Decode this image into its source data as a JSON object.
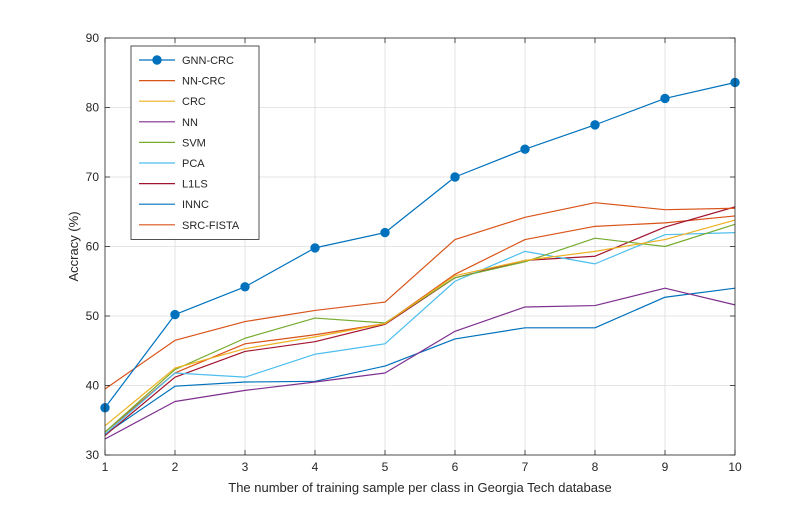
{
  "chart_data": {
    "type": "line",
    "title": "",
    "xlabel": "The number of training sample per class in Georgia Tech database",
    "ylabel": "Accracy (%)",
    "x": [
      1,
      2,
      3,
      4,
      5,
      6,
      7,
      8,
      9,
      10
    ],
    "xlim": [
      1,
      10
    ],
    "ylim": [
      30,
      90
    ],
    "x_ticks": [
      "1",
      "2",
      "3",
      "4",
      "5",
      "6",
      "7",
      "8",
      "9",
      "10"
    ],
    "y_ticks": [
      "30",
      "40",
      "50",
      "60",
      "70",
      "80",
      "90"
    ],
    "grid": true,
    "legend_position": "top-left",
    "series": [
      {
        "name": "GNN-CRC",
        "color": "#0072BD",
        "marker": "circle",
        "values": [
          36.8,
          50.2,
          54.2,
          59.8,
          62.0,
          70.0,
          74.0,
          77.5,
          81.3,
          83.6
        ]
      },
      {
        "name": "NN-CRC",
        "color": "#D95319",
        "marker": "none",
        "values": [
          39.5,
          46.5,
          49.2,
          50.8,
          52.0,
          61.0,
          64.2,
          66.3,
          65.3,
          65.5
        ]
      },
      {
        "name": "CRC",
        "color": "#EDB120",
        "marker": "none",
        "values": [
          34.2,
          42.5,
          45.3,
          47.0,
          48.9,
          55.8,
          58.0,
          59.3,
          61.0,
          63.8
        ]
      },
      {
        "name": "NN",
        "color": "#7E2F8E",
        "marker": "none",
        "values": [
          32.3,
          37.7,
          39.3,
          40.5,
          41.8,
          47.8,
          51.3,
          51.5,
          54.0,
          51.6
        ]
      },
      {
        "name": "SVM",
        "color": "#77AC30",
        "marker": "none",
        "values": [
          33.3,
          42.3,
          46.8,
          49.7,
          49.0,
          55.5,
          57.8,
          61.2,
          60.0,
          63.2
        ]
      },
      {
        "name": "PCA",
        "color": "#4DBEEE",
        "marker": "none",
        "values": [
          33.0,
          41.8,
          41.2,
          44.5,
          46.0,
          55.0,
          59.3,
          57.5,
          61.7,
          62.0
        ]
      },
      {
        "name": "L1LS",
        "color": "#A2142F",
        "marker": "none",
        "values": [
          32.8,
          41.2,
          44.9,
          46.3,
          48.8,
          55.5,
          58.0,
          58.6,
          62.8,
          65.7
        ]
      },
      {
        "name": "INNC",
        "color": "#0072BD",
        "marker": "none",
        "values": [
          33.0,
          39.9,
          40.5,
          40.6,
          42.8,
          46.7,
          48.3,
          48.3,
          52.7,
          54.0
        ]
      },
      {
        "name": "SRC-FISTA",
        "color": "#D95319",
        "marker": "none",
        "values": [
          33.3,
          41.8,
          46.0,
          47.3,
          48.9,
          56.0,
          61.0,
          62.9,
          63.4,
          64.4
        ]
      }
    ]
  }
}
